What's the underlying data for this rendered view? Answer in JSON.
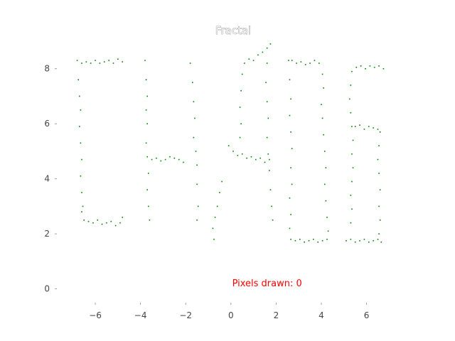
{
  "chart_data": {
    "type": "scatter",
    "title": "Fractal",
    "xlabel": "",
    "ylabel": "",
    "xlim": [
      -7.7,
      7.9
    ],
    "ylim": [
      -0.5,
      9.0
    ],
    "xticks": [
      -6,
      -4,
      -2,
      0,
      2,
      4,
      6
    ],
    "yticks": [
      0,
      2,
      4,
      6,
      8
    ],
    "xtick_labels": [
      "−6",
      "−4",
      "−2",
      "0",
      "2",
      "4",
      "6"
    ],
    "ytick_labels": [
      "0",
      "2",
      "4",
      "6",
      "8"
    ],
    "grid": false,
    "point_color": "#008000",
    "annotation": {
      "text": "Pixels drawn: 0",
      "x": 1.6,
      "y": 0.1,
      "color": "#ff0000"
    },
    "series": [
      {
        "points": [
          [
            -6.8,
            8.3
          ],
          [
            -6.6,
            8.2
          ],
          [
            -6.4,
            8.25
          ],
          [
            -6.2,
            8.2
          ],
          [
            -6.0,
            8.3
          ],
          [
            -5.8,
            8.2
          ],
          [
            -5.6,
            8.25
          ],
          [
            -5.4,
            8.3
          ],
          [
            -5.2,
            8.2
          ],
          [
            -5.0,
            8.35
          ],
          [
            -4.8,
            8.25
          ],
          [
            -6.75,
            7.6
          ],
          [
            -6.7,
            7.0
          ],
          [
            -6.65,
            6.5
          ],
          [
            -6.7,
            5.9
          ],
          [
            -6.65,
            5.3
          ],
          [
            -6.6,
            4.7
          ],
          [
            -6.65,
            4.1
          ],
          [
            -6.6,
            3.5
          ],
          [
            -6.55,
            3.0
          ],
          [
            -6.6,
            2.8
          ],
          [
            -6.5,
            2.5
          ],
          [
            -6.3,
            2.45
          ],
          [
            -6.1,
            2.4
          ],
          [
            -5.9,
            2.5
          ],
          [
            -5.7,
            2.35
          ],
          [
            -5.5,
            2.4
          ],
          [
            -5.3,
            2.45
          ],
          [
            -5.1,
            2.3
          ],
          [
            -4.9,
            2.4
          ],
          [
            -4.8,
            2.6
          ],
          [
            -3.8,
            8.3
          ],
          [
            -3.75,
            7.6
          ],
          [
            -3.7,
            7.0
          ],
          [
            -3.75,
            6.5
          ],
          [
            -3.7,
            6.0
          ],
          [
            -3.75,
            5.3
          ],
          [
            -3.7,
            4.8
          ],
          [
            -3.65,
            4.2
          ],
          [
            -3.7,
            3.6
          ],
          [
            -3.65,
            3.0
          ],
          [
            -3.6,
            2.5
          ],
          [
            -3.5,
            4.7
          ],
          [
            -3.3,
            4.75
          ],
          [
            -3.1,
            4.65
          ],
          [
            -2.9,
            4.7
          ],
          [
            -2.7,
            4.8
          ],
          [
            -2.5,
            4.75
          ],
          [
            -2.3,
            4.7
          ],
          [
            -2.1,
            4.6
          ],
          [
            -1.8,
            8.2
          ],
          [
            -1.7,
            7.5
          ],
          [
            -1.65,
            6.8
          ],
          [
            -1.6,
            6.2
          ],
          [
            -1.65,
            5.5
          ],
          [
            -1.55,
            5.0
          ],
          [
            -1.5,
            4.5
          ],
          [
            -1.5,
            3.8
          ],
          [
            -1.45,
            3.0
          ],
          [
            -1.5,
            2.5
          ],
          [
            -0.8,
            2.2
          ],
          [
            -0.7,
            2.6
          ],
          [
            -0.6,
            3.0
          ],
          [
            -0.5,
            3.5
          ],
          [
            -0.4,
            3.9
          ],
          [
            -0.75,
            1.8
          ],
          [
            -0.1,
            5.2
          ],
          [
            0.1,
            5.0
          ],
          [
            0.3,
            4.85
          ],
          [
            0.5,
            4.9
          ],
          [
            0.7,
            4.75
          ],
          [
            0.9,
            4.8
          ],
          [
            1.1,
            4.7
          ],
          [
            1.3,
            4.75
          ],
          [
            1.5,
            4.6
          ],
          [
            1.7,
            4.7
          ],
          [
            0.4,
            5.5
          ],
          [
            0.45,
            6.0
          ],
          [
            0.4,
            6.6
          ],
          [
            0.45,
            7.2
          ],
          [
            0.5,
            7.8
          ],
          [
            0.6,
            8.2
          ],
          [
            0.8,
            8.35
          ],
          [
            1.0,
            8.3
          ],
          [
            1.2,
            8.5
          ],
          [
            1.4,
            8.6
          ],
          [
            1.6,
            8.75
          ],
          [
            1.75,
            8.9
          ],
          [
            1.6,
            8.2
          ],
          [
            1.55,
            7.5
          ],
          [
            1.6,
            6.8
          ],
          [
            1.65,
            6.2
          ],
          [
            1.6,
            5.5
          ],
          [
            1.65,
            4.9
          ],
          [
            1.7,
            4.3
          ],
          [
            1.75,
            3.6
          ],
          [
            1.8,
            3.0
          ],
          [
            1.85,
            2.5
          ],
          [
            2.55,
            8.3
          ],
          [
            2.7,
            8.3
          ],
          [
            2.9,
            8.2
          ],
          [
            3.1,
            8.25
          ],
          [
            3.3,
            8.15
          ],
          [
            3.5,
            8.2
          ],
          [
            3.7,
            8.3
          ],
          [
            3.9,
            8.2
          ],
          [
            2.6,
            7.6
          ],
          [
            2.65,
            6.9
          ],
          [
            2.6,
            6.3
          ],
          [
            2.65,
            5.7
          ],
          [
            2.7,
            5.1
          ],
          [
            2.65,
            4.4
          ],
          [
            2.7,
            3.8
          ],
          [
            2.6,
            3.3
          ],
          [
            2.65,
            2.7
          ],
          [
            2.6,
            2.2
          ],
          [
            2.65,
            1.8
          ],
          [
            2.85,
            1.75
          ],
          [
            3.05,
            1.8
          ],
          [
            3.25,
            1.7
          ],
          [
            3.45,
            1.75
          ],
          [
            3.65,
            1.8
          ],
          [
            3.85,
            1.7
          ],
          [
            4.05,
            1.75
          ],
          [
            4.25,
            1.8
          ],
          [
            4.05,
            7.8
          ],
          [
            4.1,
            7.3
          ],
          [
            4.0,
            6.7
          ],
          [
            4.05,
            6.2
          ],
          [
            4.1,
            5.6
          ],
          [
            4.15,
            5.0
          ],
          [
            4.2,
            4.4
          ],
          [
            4.15,
            3.8
          ],
          [
            4.2,
            3.2
          ],
          [
            4.25,
            2.6
          ],
          [
            4.3,
            2.1
          ],
          [
            5.35,
            7.9
          ],
          [
            5.55,
            8.05
          ],
          [
            5.75,
            8.1
          ],
          [
            5.95,
            8.0
          ],
          [
            6.15,
            8.1
          ],
          [
            6.35,
            8.05
          ],
          [
            6.55,
            8.1
          ],
          [
            6.75,
            8.0
          ],
          [
            5.3,
            7.4
          ],
          [
            5.25,
            6.9
          ],
          [
            5.3,
            6.4
          ],
          [
            5.35,
            5.9
          ],
          [
            5.4,
            5.4
          ],
          [
            5.35,
            4.9
          ],
          [
            5.4,
            4.4
          ],
          [
            5.35,
            3.9
          ],
          [
            5.3,
            3.4
          ],
          [
            5.35,
            2.9
          ],
          [
            5.3,
            2.4
          ],
          [
            5.5,
            5.9
          ],
          [
            5.7,
            5.95
          ],
          [
            5.9,
            5.8
          ],
          [
            6.1,
            5.9
          ],
          [
            6.3,
            5.85
          ],
          [
            6.5,
            5.8
          ],
          [
            6.6,
            5.7
          ],
          [
            6.55,
            5.2
          ],
          [
            6.5,
            4.7
          ],
          [
            6.55,
            4.2
          ],
          [
            6.6,
            3.6
          ],
          [
            6.55,
            3.0
          ],
          [
            6.6,
            2.5
          ],
          [
            6.55,
            2.0
          ],
          [
            5.1,
            1.75
          ],
          [
            5.3,
            1.8
          ],
          [
            5.5,
            1.7
          ],
          [
            5.7,
            1.75
          ],
          [
            5.9,
            1.8
          ],
          [
            6.1,
            1.7
          ],
          [
            6.3,
            1.75
          ],
          [
            6.5,
            1.8
          ],
          [
            6.65,
            1.7
          ]
        ]
      }
    ]
  }
}
